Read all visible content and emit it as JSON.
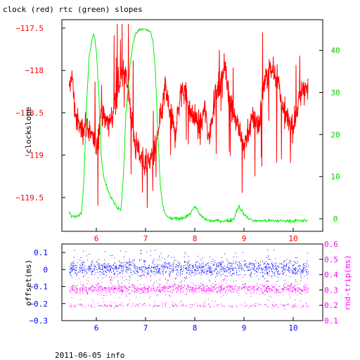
{
  "footer": "2011-06-05 info",
  "chart_data": [
    {
      "type": "line",
      "title": "clock (red) rtc (green) slopes",
      "xlabel": "",
      "ylabel": "clockslope",
      "xlim": [
        5.3,
        10.6
      ],
      "ylim": [
        -119.9,
        -117.4
      ],
      "y2lim": [
        -3,
        47.3
      ],
      "x_ticks": [
        6,
        7,
        8,
        9,
        10
      ],
      "y_ticks": [
        -117.5,
        -118,
        -118.5,
        -119,
        -119.5
      ],
      "y2_ticks": [
        0,
        10,
        20,
        30,
        40
      ],
      "colors": {
        "clock": "#ff0000",
        "rtc": "#00ee00",
        "left_axis": "#ff0000",
        "right_axis": "#00cc00",
        "x_axis": "#ff0000"
      },
      "series": [
        {
          "name": "clock",
          "axis": "left",
          "x": [
            5.45,
            5.5,
            5.55,
            5.6,
            5.7,
            5.8,
            5.9,
            6.0,
            6.1,
            6.2,
            6.3,
            6.4,
            6.5,
            6.6,
            6.7,
            6.8,
            6.9,
            7.0,
            7.1,
            7.2,
            7.3,
            7.4,
            7.5,
            7.6,
            7.7,
            7.8,
            7.9,
            8.0,
            8.1,
            8.2,
            8.3,
            8.4,
            8.5,
            8.6,
            8.7,
            8.8,
            8.9,
            9.0,
            9.1,
            9.2,
            9.3,
            9.4,
            9.5,
            9.6,
            9.7,
            9.8,
            9.9,
            10.0,
            10.1,
            10.2,
            10.3
          ],
          "y": [
            -118.3,
            -118.0,
            -118.4,
            -118.6,
            -118.7,
            -118.6,
            -118.8,
            -118.9,
            -118.5,
            -118.6,
            -118.6,
            -118.3,
            -118.1,
            -118.0,
            -118.5,
            -118.9,
            -119.0,
            -119.1,
            -119.05,
            -118.95,
            -118.6,
            -118.2,
            -118.5,
            -118.75,
            -118.3,
            -118.2,
            -118.5,
            -118.55,
            -118.7,
            -118.45,
            -118.8,
            -118.3,
            -118.2,
            -117.95,
            -118.3,
            -118.5,
            -118.7,
            -118.9,
            -118.7,
            -118.55,
            -118.65,
            -118.2,
            -118.0,
            -118.0,
            -118.15,
            -118.5,
            -118.6,
            -118.65,
            -118.4,
            -118.2,
            -118.2
          ]
        },
        {
          "name": "rtc",
          "axis": "right",
          "x": [
            5.45,
            5.5,
            5.6,
            5.7,
            5.75,
            5.8,
            5.85,
            5.9,
            5.95,
            6.0,
            6.05,
            6.1,
            6.15,
            6.2,
            6.3,
            6.4,
            6.5,
            6.55,
            6.6,
            6.7,
            6.75,
            6.8,
            6.9,
            7.0,
            7.1,
            7.15,
            7.2,
            7.25,
            7.3,
            7.35,
            7.4,
            7.45,
            7.5,
            7.6,
            7.7,
            7.8,
            7.9,
            7.95,
            8.0,
            8.05,
            8.1,
            8.2,
            8.3,
            8.4,
            8.5,
            8.6,
            8.7,
            8.8,
            8.85,
            8.9,
            8.95,
            9.0,
            9.05,
            9.1,
            9.2,
            9.4,
            9.6,
            9.8,
            10.0,
            10.2,
            10.3
          ],
          "y": [
            1.5,
            0.5,
            0.5,
            1.5,
            10,
            27,
            38,
            42,
            44,
            40,
            30,
            15,
            10,
            8,
            5,
            3,
            2,
            10,
            25,
            38,
            42,
            44,
            45,
            45,
            44.5,
            42,
            35,
            20,
            8,
            3,
            1,
            0.5,
            0,
            0,
            0,
            0.5,
            1,
            2,
            3,
            2,
            1,
            0,
            -0.5,
            -0.5,
            -0.5,
            -0.5,
            -0.5,
            0,
            2,
            3,
            2,
            1,
            0.5,
            0,
            -0.5,
            -0.5,
            -0.5,
            -0.5,
            -0.5,
            -0.5,
            -0.5
          ]
        }
      ]
    },
    {
      "type": "scatter",
      "title": "",
      "xlabel": "",
      "ylabel": "offset(ms)",
      "y2label": "rnd-trip(ms)",
      "xlim": [
        5.3,
        10.6
      ],
      "ylim": [
        -0.3,
        0.15
      ],
      "y2lim": [
        0.1,
        0.6
      ],
      "x_ticks": [
        6,
        7,
        8,
        9,
        10
      ],
      "y_ticks": [
        0.1,
        0,
        -0.1,
        -0.2,
        -0.3
      ],
      "y2_ticks": [
        0.6,
        0.5,
        0.4,
        0.3,
        0.2,
        0.1
      ],
      "colors": {
        "offset": "#0000ff",
        "rnd_trip": "#ff00ff",
        "left_axis": "#0000ff",
        "right_axis": "#ff00ff",
        "x_axis": "#0000ff"
      },
      "series": [
        {
          "name": "offset",
          "axis": "left",
          "x_range": [
            5.45,
            10.3
          ],
          "center": 0.01,
          "spread": 0.04,
          "outlier_range": [
            -0.1,
            0.12
          ]
        },
        {
          "name": "rnd-trip",
          "axis": "right",
          "x_range": [
            5.45,
            10.3
          ],
          "center": 0.31,
          "spread": 0.025,
          "lower_band": 0.2
        }
      ]
    }
  ]
}
